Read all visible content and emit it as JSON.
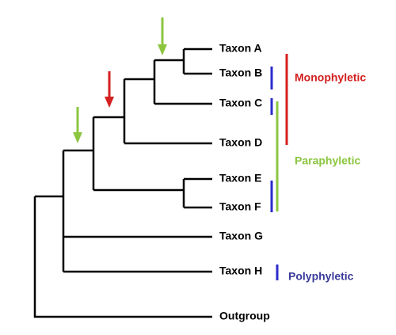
{
  "taxa": [
    "Taxon A",
    "Taxon B",
    "Taxon C",
    "Taxon D",
    "Taxon E",
    "Taxon F",
    "Taxon G",
    "Taxon H",
    "Outgroup"
  ],
  "groups": {
    "monophyletic": "Monophyletic",
    "paraphyletic": "Paraphyletic",
    "polyphyletic": "Polyphyletic"
  }
}
